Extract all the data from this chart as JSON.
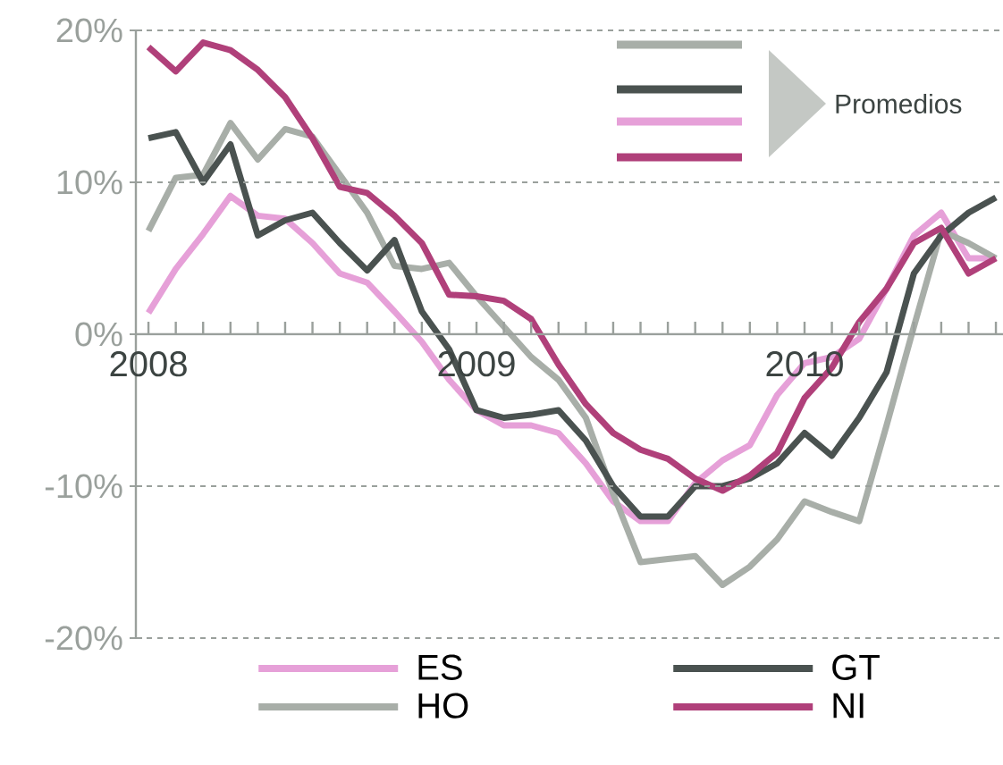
{
  "chart_data": {
    "type": "line",
    "categories": [
      "2008",
      null,
      null,
      null,
      null,
      null,
      null,
      null,
      null,
      null,
      null,
      null,
      "2009",
      null,
      null,
      null,
      null,
      null,
      null,
      null,
      null,
      null,
      null,
      null,
      "2010",
      null,
      null,
      null,
      null,
      null,
      null,
      null
    ],
    "series": [
      {
        "name": "ES",
        "color": "#e6a0d8",
        "values": [
          1.4,
          4.3,
          6.6,
          9.1,
          7.8,
          7.6,
          6.0,
          4.0,
          3.4,
          1.5,
          -0.5,
          -3.0,
          -5.0,
          -6.0,
          -6.0,
          -6.5,
          -8.5,
          -11.0,
          -12.3,
          -12.3,
          -9.8,
          -8.3,
          -7.3,
          -4.0,
          -1.9,
          -1.5,
          -0.3,
          3.0,
          6.5,
          8.0,
          5.0,
          5.0
        ]
      },
      {
        "name": "HO",
        "color": "#a8aea8",
        "values": [
          6.8,
          10.3,
          10.5,
          13.9,
          11.5,
          13.5,
          13.0,
          10.5,
          8.0,
          4.5,
          4.3,
          4.7,
          2.5,
          0.5,
          -1.5,
          -3.0,
          -5.5,
          -10.5,
          -15.0,
          -14.8,
          -14.6,
          -16.5,
          -15.3,
          -13.5,
          -11.0,
          -11.7,
          -12.3,
          -6.0,
          0.5,
          6.8,
          6.0,
          5.0
        ]
      },
      {
        "name": "GT",
        "color": "#4a5250",
        "values": [
          12.9,
          13.3,
          10.0,
          12.5,
          6.5,
          7.5,
          8.0,
          6.0,
          4.2,
          6.2,
          1.5,
          -1.0,
          -5.0,
          -5.5,
          -5.3,
          -5.0,
          -7.0,
          -10.0,
          -12.0,
          -12.0,
          -10.0,
          -10.0,
          -9.5,
          -8.5,
          -6.5,
          -8.0,
          -5.5,
          -2.5,
          4.0,
          6.5,
          8.0,
          9.0
        ]
      },
      {
        "name": "NI",
        "color": "#b0407a",
        "values": [
          18.9,
          17.3,
          19.2,
          18.7,
          17.4,
          15.6,
          12.9,
          9.7,
          9.3,
          7.8,
          6.0,
          2.6,
          2.5,
          2.2,
          1.0,
          -2.0,
          -4.6,
          -6.5,
          -7.6,
          -8.2,
          -9.5,
          -10.3,
          -9.3,
          -7.8,
          -4.2,
          -2.2,
          0.8,
          3.0,
          6.0,
          7.0,
          4.0,
          5.0
        ]
      }
    ],
    "ylim": [
      -20,
      20
    ],
    "yticks": [
      {
        "value": -20,
        "label": "-20%"
      },
      {
        "value": -10,
        "label": "-10%"
      },
      {
        "value": 0,
        "label": "0%"
      },
      {
        "value": 10,
        "label": "10%"
      },
      {
        "value": 20,
        "label": "20%"
      }
    ],
    "grid": "y",
    "legend": "bottom",
    "line_style": "solid",
    "marker": "none",
    "annotations": [
      "Promedios"
    ]
  }
}
